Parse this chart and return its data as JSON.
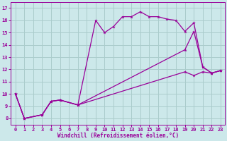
{
  "bg_color": "#cce8ea",
  "line_color": "#990099",
  "grid_color": "#aacccc",
  "xlabel": "Windchill (Refroidissement éolien,°C)",
  "xlabel_color": "#990099",
  "tick_color": "#990099",
  "xlim": [
    -0.5,
    23.5
  ],
  "ylim": [
    7.5,
    17.5
  ],
  "yticks": [
    8,
    9,
    10,
    11,
    12,
    13,
    14,
    15,
    16,
    17
  ],
  "xticks": [
    0,
    1,
    2,
    3,
    4,
    5,
    6,
    7,
    8,
    9,
    10,
    11,
    12,
    13,
    14,
    15,
    16,
    17,
    18,
    19,
    20,
    21,
    22,
    23
  ],
  "line1": {
    "x": [
      0,
      1,
      3,
      4,
      5,
      7,
      9,
      10,
      11,
      12,
      13,
      14,
      15,
      16,
      17,
      18,
      19,
      20,
      21,
      22,
      23
    ],
    "y": [
      10.0,
      8.0,
      8.3,
      9.4,
      9.5,
      9.1,
      16.0,
      15.0,
      15.5,
      16.3,
      16.3,
      16.7,
      16.3,
      16.3,
      16.1,
      16.0,
      15.1,
      15.8,
      12.2,
      11.7,
      11.9
    ]
  },
  "line2": {
    "x": [
      0,
      1,
      3,
      4,
      5,
      7,
      19,
      20,
      21,
      22,
      23
    ],
    "y": [
      10.0,
      8.0,
      8.3,
      9.4,
      9.5,
      9.1,
      13.6,
      15.1,
      12.2,
      11.7,
      11.9
    ]
  },
  "line3": {
    "x": [
      0,
      1,
      3,
      4,
      5,
      7,
      19,
      20,
      21,
      22,
      23
    ],
    "y": [
      10.0,
      8.0,
      8.3,
      9.4,
      9.5,
      9.1,
      11.8,
      11.5,
      11.8,
      11.7,
      11.9
    ]
  }
}
